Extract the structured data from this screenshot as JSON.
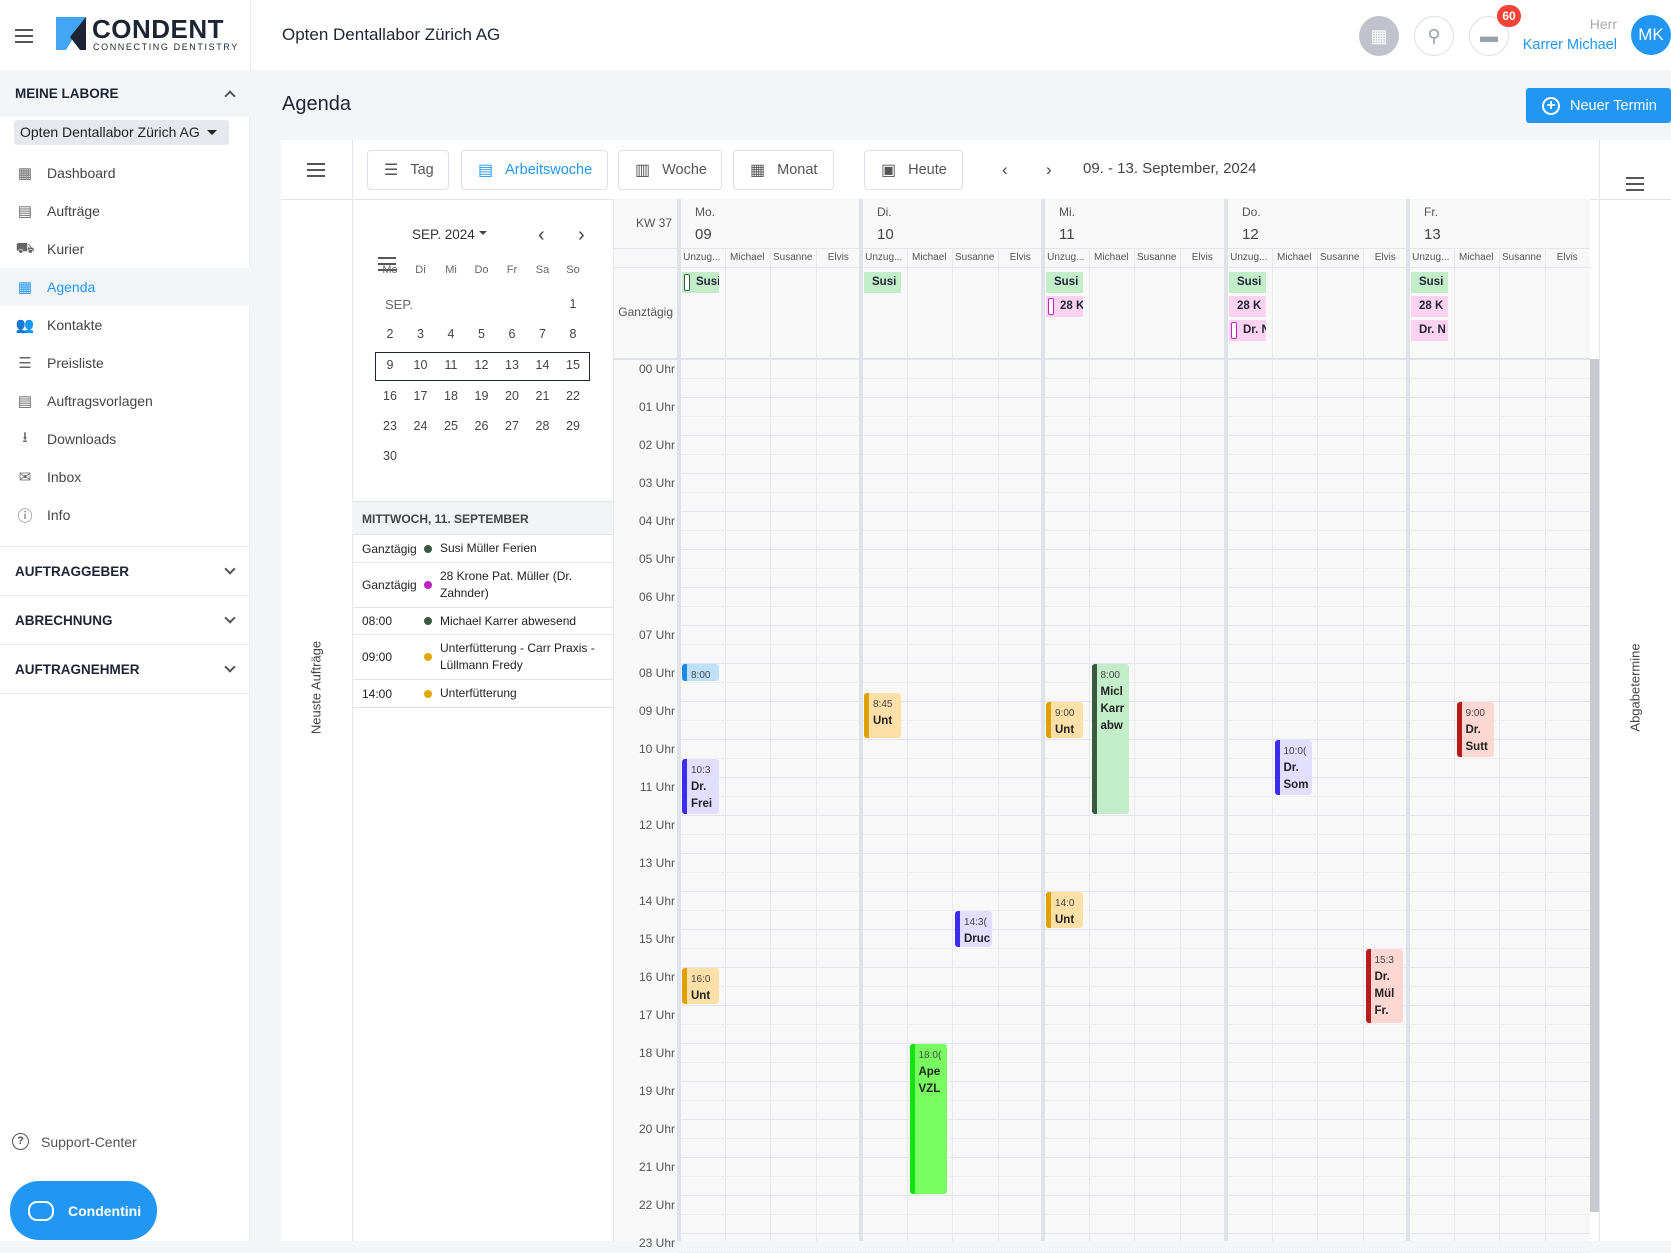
{
  "header": {
    "company": "Opten Dentallabor Zürich AG",
    "logo_name": "CONDENT",
    "logo_tagline": "CONNECTING DENTISTRY",
    "user_salutation": "Herr",
    "user_name": "Karrer Michael",
    "avatar_initials": "MK",
    "notification_count": "60"
  },
  "sidebar": {
    "section_title": "MEINE LABORE",
    "lab_select": "Opten Dentallabor Zürich AG",
    "items": [
      {
        "label": "Dashboard",
        "icon": "▦"
      },
      {
        "label": "Aufträge",
        "icon": "▤"
      },
      {
        "label": "Kurier",
        "icon": "⛟"
      },
      {
        "label": "Agenda",
        "icon": "▦",
        "active": true
      },
      {
        "label": "Kontakte",
        "icon": "👥"
      },
      {
        "label": "Preisliste",
        "icon": "☰"
      },
      {
        "label": "Auftragsvorlagen",
        "icon": "▤"
      },
      {
        "label": "Downloads",
        "icon": "⭳"
      },
      {
        "label": "Inbox",
        "icon": "✉"
      },
      {
        "label": "Info",
        "icon": "ⓘ"
      }
    ],
    "sections": [
      "AUFTRAGGEBER",
      "ABRECHNUNG",
      "AUFTRAGNEHMER"
    ],
    "support": "Support-Center",
    "chat_button": "Condentini"
  },
  "page": {
    "title": "Agenda",
    "new_button": "Neuer Termin"
  },
  "toolbar": {
    "views": [
      "Tag",
      "Arbeitswoche",
      "Woche",
      "Monat"
    ],
    "active_view": "Arbeitswoche",
    "today": "Heute",
    "range": "09. - 13. September, 2024"
  },
  "side_labels": {
    "left": "Neuste Aufträge",
    "right": "Abgabetermine"
  },
  "mini_calendar": {
    "month": "SEP. 2024",
    "month_short": "SEP.",
    "weekdays": [
      "Mo",
      "Di",
      "Mi",
      "Do",
      "Fr",
      "Sa",
      "So"
    ],
    "weeks": [
      [
        "",
        "",
        "",
        "",
        "",
        "",
        "1"
      ],
      [
        "2",
        "3",
        "4",
        "5",
        "6",
        "7",
        "8"
      ],
      [
        "9",
        "10",
        "11",
        "12",
        "13",
        "14",
        "15"
      ],
      [
        "16",
        "17",
        "18",
        "19",
        "20",
        "21",
        "22"
      ],
      [
        "23",
        "24",
        "25",
        "26",
        "27",
        "28",
        "29"
      ],
      [
        "30",
        "",
        "",
        "",
        "",
        "",
        ""
      ]
    ],
    "selected_week": 2
  },
  "day_list": {
    "title": "MITTWOCH, 11. SEPTEMBER",
    "items": [
      {
        "time": "Ganztägig",
        "color": "#3a5a40",
        "text": "Susi Müller Ferien"
      },
      {
        "time": "Ganztägig",
        "color": "#c020c0",
        "text": "28 Krone Pat. Müller (Dr. Zahnder)"
      },
      {
        "time": "08:00",
        "color": "#3a5a40",
        "text": "Michael Karrer abwesend"
      },
      {
        "time": "09:00",
        "color": "#e0a800",
        "text": "Unterfütterung - Carr Praxis - Lüllmann Fredy"
      },
      {
        "time": "14:00",
        "color": "#e0a800",
        "text": "Unterfütterung"
      }
    ]
  },
  "week": {
    "kw": "KW 37",
    "allday_label": "Ganztägig",
    "resources": [
      "Unzug...",
      "Michael",
      "Susanne",
      "Elvis"
    ],
    "days": [
      {
        "dow": "Mo.",
        "date": "09"
      },
      {
        "dow": "Di.",
        "date": "10"
      },
      {
        "dow": "Mi.",
        "date": "11"
      },
      {
        "dow": "Do.",
        "date": "12"
      },
      {
        "dow": "Fr.",
        "date": "13"
      }
    ],
    "hours": [
      "00 Uhr",
      "01 Uhr",
      "02 Uhr",
      "03 Uhr",
      "04 Uhr",
      "05 Uhr",
      "06 Uhr",
      "07 Uhr",
      "08 Uhr",
      "09 Uhr",
      "10 Uhr",
      "11 Uhr",
      "12 Uhr",
      "13 Uhr",
      "14 Uhr",
      "15 Uhr",
      "16 Uhr",
      "17 Uhr",
      "18 Uhr",
      "19 Uhr",
      "20 Uhr",
      "21 Uhr",
      "22 Uhr",
      "23 Uhr"
    ],
    "allday": [
      {
        "day": 0,
        "row": 0,
        "text": "Susi",
        "bg": "#c3ecc9",
        "bar": "#3a5a40",
        "outline": true
      },
      {
        "day": 1,
        "row": 0,
        "text": "Susi",
        "bg": "#c3ecc9"
      },
      {
        "day": 2,
        "row": 0,
        "text": "Susi",
        "bg": "#c3ecc9"
      },
      {
        "day": 2,
        "row": 1,
        "text": "28 K",
        "bg": "#fbd3f0",
        "bar": "#c020c0",
        "outline": true
      },
      {
        "day": 3,
        "row": 0,
        "text": "Susi",
        "bg": "#c3ecc9"
      },
      {
        "day": 3,
        "row": 1,
        "text": "28 K",
        "bg": "#fbd3f0"
      },
      {
        "day": 3,
        "row": 2,
        "text": "Dr. N",
        "bg": "#fbd3f0",
        "bar": "#c020c0",
        "outline": true
      },
      {
        "day": 4,
        "row": 0,
        "text": "Susi",
        "bg": "#c3ecc9"
      },
      {
        "day": 4,
        "row": 1,
        "text": "28 K",
        "bg": "#fbd3f0"
      },
      {
        "day": 4,
        "row": 2,
        "text": "Dr. N",
        "bg": "#fbd3f0"
      }
    ],
    "events": [
      {
        "day": 0,
        "col": 0,
        "start": 8,
        "end": 8.5,
        "time": "8:00",
        "title": "",
        "bg": "#bfe0fb",
        "bar": "#1e88e5"
      },
      {
        "day": 0,
        "col": 0,
        "start": 10.5,
        "end": 12,
        "time": "10:3",
        "title": "Dr.\nFrei",
        "bg": "#e2defd",
        "bar": "#3d2cf0"
      },
      {
        "day": 0,
        "col": 0,
        "start": 16,
        "end": 17,
        "time": "16:0",
        "title": "Unt",
        "bg": "#fde0a8",
        "bar": "#e0a000"
      },
      {
        "day": 1,
        "col": 0,
        "start": 8.75,
        "end": 10,
        "time": "8:45",
        "title": "Unt",
        "bg": "#fde0a8",
        "bar": "#e0a000"
      },
      {
        "day": 1,
        "col": 2,
        "start": 14.5,
        "end": 15.5,
        "time": "14:3(",
        "title": "Druc",
        "bg": "#e2defd",
        "bar": "#3d2cf0"
      },
      {
        "day": 1,
        "col": 1,
        "start": 18,
        "end": 22,
        "time": "18:0(",
        "title": "Ape\nVZL",
        "bg": "#78ff60",
        "bar": "#16e016"
      },
      {
        "day": 2,
        "col": 0,
        "start": 9,
        "end": 10,
        "time": "9:00",
        "title": "Unt",
        "bg": "#fde0a8",
        "bar": "#e0a000"
      },
      {
        "day": 2,
        "col": 1,
        "start": 8,
        "end": 12,
        "time": "8:00",
        "title": "Micl\nKarr\nabw",
        "bg": "#c3ecc9",
        "bar": "#3a5a40"
      },
      {
        "day": 2,
        "col": 0,
        "start": 14,
        "end": 15,
        "time": "14:0",
        "title": "Unt",
        "bg": "#fde0a8",
        "bar": "#e0a000"
      },
      {
        "day": 3,
        "col": 1,
        "start": 10,
        "end": 11.5,
        "time": "10:0(",
        "title": "Dr.\nSom",
        "bg": "#e2defd",
        "bar": "#3d2cf0"
      },
      {
        "day": 3,
        "col": 3,
        "start": 15.5,
        "end": 17.5,
        "time": "15:3",
        "title": "Dr.\nMül\nFr.",
        "bg": "#fdd8d3",
        "bar": "#b71c1c"
      },
      {
        "day": 4,
        "col": 1,
        "start": 9,
        "end": 10.5,
        "time": "9:00",
        "title": "Dr.\nSutt",
        "bg": "#fdd8d3",
        "bar": "#b71c1c"
      }
    ]
  },
  "colors": {
    "accent": "#2196f3",
    "badge": "#f44336"
  }
}
